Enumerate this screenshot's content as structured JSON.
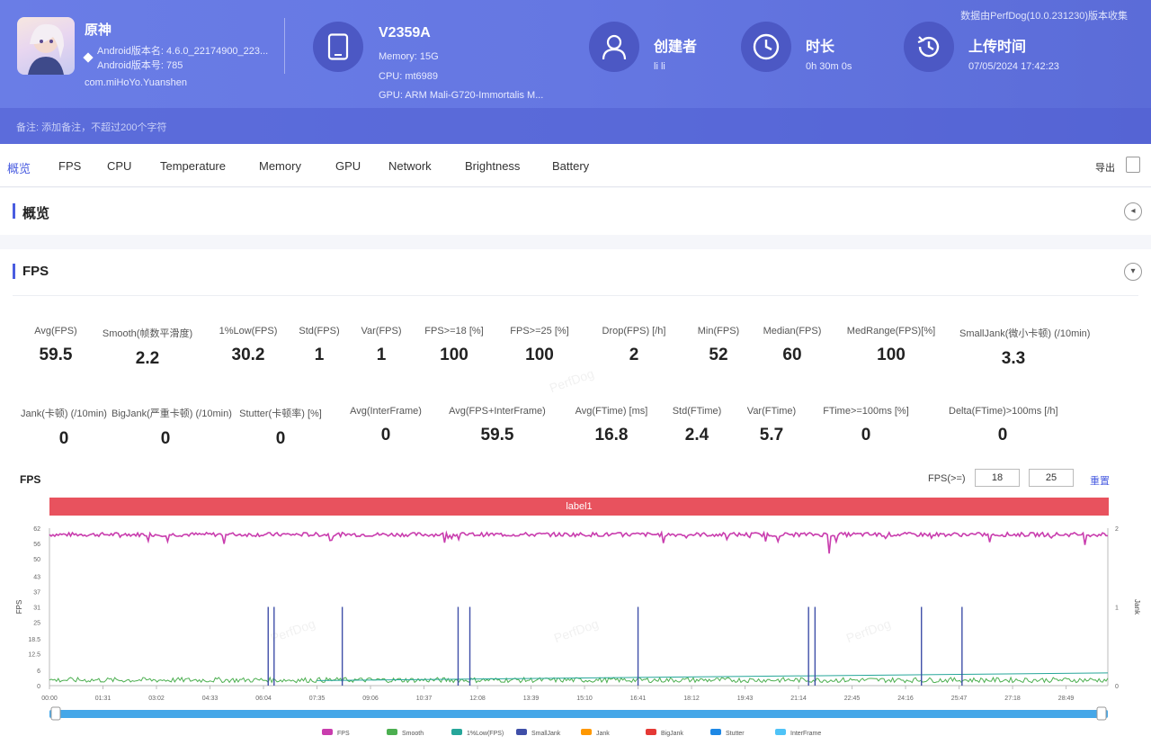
{
  "header": {
    "app": {
      "name": "原神",
      "version_name": "Android版本名: 4.6.0_22174900_223...",
      "version_code": "Android版本号: 785",
      "package": "com.miHoYo.Yuanshen"
    },
    "device": {
      "model": "V2359A",
      "memory": "Memory: 15G",
      "cpu": "CPU: mt6989",
      "gpu": "GPU: ARM Mali-G720-Immortalis M..."
    },
    "creator": {
      "title": "创建者",
      "value": "li li"
    },
    "duration": {
      "title": "时长",
      "value": "0h 30m 0s"
    },
    "upload": {
      "title": "上传时间",
      "value": "07/05/2024 17:42:23"
    },
    "source": "数据由PerfDog(10.0.231230)版本收集",
    "note": "备注: 添加备注，不超过200个字符"
  },
  "tabs": [
    "概览",
    "FPS",
    "CPU",
    "Temperature",
    "Memory",
    "GPU",
    "Network",
    "Brightness",
    "Battery"
  ],
  "export_label": "导出",
  "sections": {
    "overview": "概览",
    "fps": "FPS"
  },
  "stats_row1": [
    {
      "label": "Avg(FPS)",
      "value": "59.5"
    },
    {
      "label": "Smooth(帧数平滑度)",
      "value": "2.2"
    },
    {
      "label": "1%Low(FPS)",
      "value": "30.2"
    },
    {
      "label": "Std(FPS)",
      "value": "1"
    },
    {
      "label": "Var(FPS)",
      "value": "1"
    },
    {
      "label": "FPS>=18 [%]",
      "value": "100"
    },
    {
      "label": "FPS>=25 [%]",
      "value": "100"
    },
    {
      "label": "Drop(FPS) [/h]",
      "value": "2"
    },
    {
      "label": "Min(FPS)",
      "value": "52"
    },
    {
      "label": "Median(FPS)",
      "value": "60"
    },
    {
      "label": "MedRange(FPS)[%]",
      "value": "100"
    },
    {
      "label": "SmallJank(微小卡顿) (/10min)",
      "value": "3.3"
    }
  ],
  "stats_row2": [
    {
      "label": "Jank(卡顿) (/10min)",
      "value": "0"
    },
    {
      "label": "BigJank(严重卡顿) (/10min)",
      "value": "0"
    },
    {
      "label": "Stutter(卡顿率) [%]",
      "value": "0"
    },
    {
      "label": "Avg(InterFrame)",
      "value": "0"
    },
    {
      "label": "Avg(FPS+InterFrame)",
      "value": "59.5"
    },
    {
      "label": "Avg(FTime) [ms]",
      "value": "16.8"
    },
    {
      "label": "Std(FTime)",
      "value": "2.4"
    },
    {
      "label": "Var(FTime)",
      "value": "5.7"
    },
    {
      "label": "FTime>=100ms [%]",
      "value": "0"
    },
    {
      "label": "Delta(FTime)>100ms [/h]",
      "value": "0"
    }
  ],
  "chart_controls": {
    "title": "FPS",
    "threshold_label": "FPS(>=)",
    "threshold_1": "18",
    "threshold_2": "25",
    "reset_label": "重置",
    "band_label": "label1"
  },
  "chart_data": {
    "type": "line",
    "ylabel": "FPS",
    "y2label": "Jank",
    "y_ticks": [
      "0",
      "6",
      "12.5",
      "18.5",
      "25",
      "31",
      "37",
      "43",
      "50",
      "56",
      "62"
    ],
    "y2_ticks": [
      "0",
      "1",
      "2"
    ],
    "x_ticks": [
      "00:00",
      "01:31",
      "03:02",
      "04:33",
      "06:04",
      "07:35",
      "09:06",
      "10:37",
      "12:08",
      "13:39",
      "15:10",
      "16:41",
      "18:12",
      "19:43",
      "21:14",
      "22:45",
      "24:16",
      "25:47",
      "27:18",
      "28:49"
    ],
    "ylim": [
      0,
      62
    ],
    "y2lim": [
      0,
      2
    ],
    "fps_mean": 59.5,
    "fps_min": 52,
    "small_jank_times": [
      "06:12",
      "06:22",
      "08:18",
      "11:35",
      "11:55",
      "16:41",
      "21:31",
      "21:42",
      "24:43",
      "25:52"
    ],
    "legend": [
      "FPS",
      "Smooth",
      "1%Low(FPS)",
      "SmallJank",
      "Jank",
      "BigJank",
      "Stutter",
      "InterFrame"
    ],
    "series_colors": {
      "FPS": "#c93dae",
      "Smooth": "#4caf50",
      "1%Low(FPS)": "#26a69a",
      "SmallJank": "#3f4fa8",
      "Jank": "#ff9800",
      "BigJank": "#e53935",
      "Stutter": "#1e88e5",
      "InterFrame": "#4fc3f7"
    }
  },
  "colors": {
    "header": "#6577e2",
    "accent": "#4a5de0",
    "label_band": "#e8525e",
    "icon_circle": "#4c58c4"
  }
}
